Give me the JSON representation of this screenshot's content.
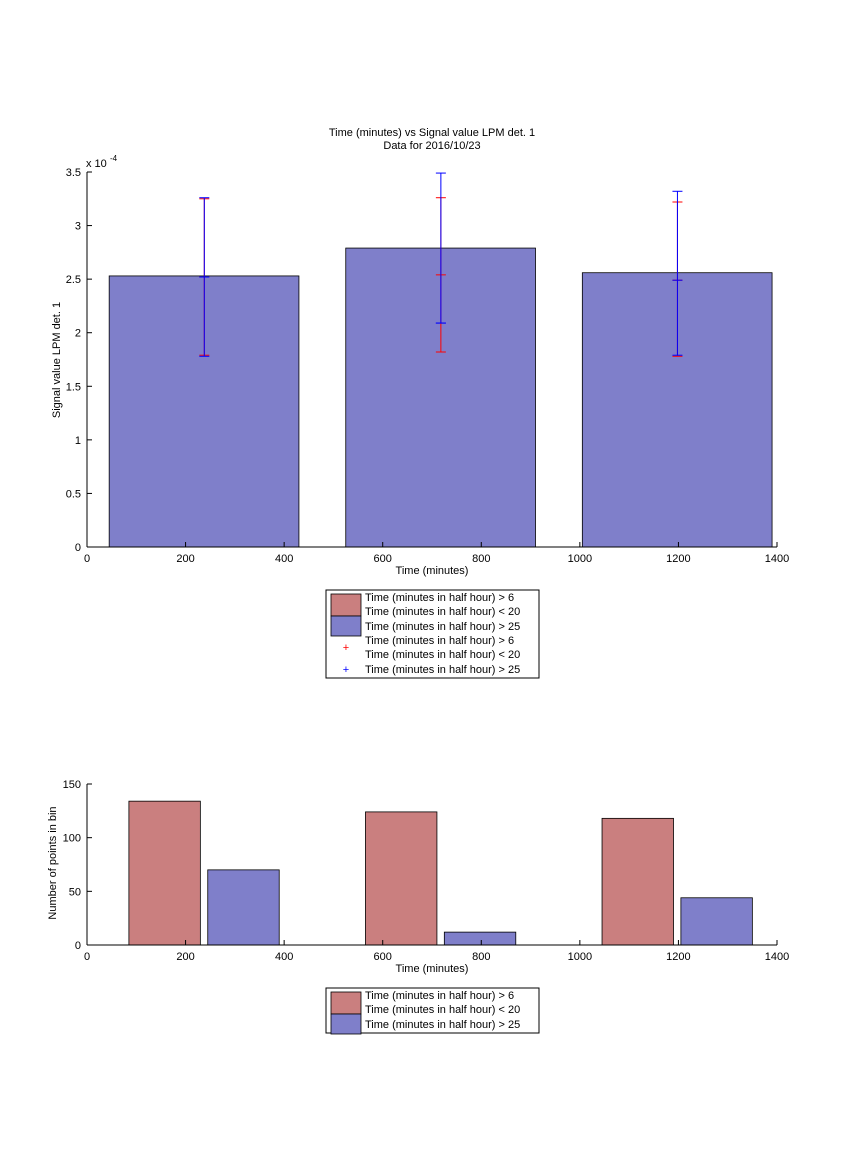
{
  "colors": {
    "red_fill": "#ca7f7f",
    "blue_fill": "#7f7fca",
    "red_err": "#ff0000",
    "blue_err": "#0000ff"
  },
  "legend": {
    "entry_red": [
      "Time (minutes in half hour) > 6",
      "Time (minutes in half hour) < 20"
    ],
    "entry_blue": "Time (minutes in half hour) > 25"
  },
  "chart_data": [
    {
      "type": "bar",
      "title": "Time (minutes) vs Signal value LPM det. 1",
      "subtitle": "Data for 2016/10/23",
      "xlabel": "Time (minutes)",
      "ylabel": "Signal value LPM det. 1",
      "y_exponent": "x 10",
      "y_exponent_power": "-4",
      "xlim": [
        0,
        1400
      ],
      "ylim": [
        0,
        3.5
      ],
      "xticks": [
        0,
        200,
        400,
        600,
        800,
        1000,
        1200,
        1400
      ],
      "yticks": [
        0,
        0.5,
        1,
        1.5,
        2,
        2.5,
        3,
        3.5
      ],
      "ytick_labels": [
        "0",
        "0.5",
        "1",
        "1.5",
        "2",
        "2.5",
        "3",
        "3.5"
      ],
      "bars": [
        {
          "x0": 45,
          "x1": 430,
          "value": 2.53
        },
        {
          "x0": 525,
          "x1": 910,
          "value": 2.79
        },
        {
          "x0": 1005,
          "x1": 1390,
          "value": 2.56
        }
      ],
      "errorbars": [
        {
          "series": "red",
          "x": 238,
          "mean": 2.52,
          "low": 1.79,
          "high": 3.25
        },
        {
          "series": "blue",
          "x": 238,
          "mean": 2.52,
          "low": 1.78,
          "high": 3.26
        },
        {
          "series": "red",
          "x": 718,
          "mean": 2.54,
          "low": 1.82,
          "high": 3.26
        },
        {
          "series": "blue",
          "x": 718,
          "mean": 2.09,
          "low": 2.09,
          "high": 3.49
        },
        {
          "series": "red",
          "x": 1198,
          "mean": 2.49,
          "low": 1.78,
          "high": 3.22
        },
        {
          "series": "blue",
          "x": 1198,
          "mean": 2.49,
          "low": 1.79,
          "high": 3.32
        }
      ]
    },
    {
      "type": "bar",
      "xlabel": "Time (minutes)",
      "ylabel": "Number of points in bin",
      "xlim": [
        0,
        1400
      ],
      "ylim": [
        0,
        150
      ],
      "xticks": [
        0,
        200,
        400,
        600,
        800,
        1000,
        1200,
        1400
      ],
      "yticks": [
        0,
        50,
        100,
        150
      ],
      "bars": [
        {
          "series": "red",
          "x0": 85,
          "x1": 230,
          "value": 134
        },
        {
          "series": "blue",
          "x0": 245,
          "x1": 390,
          "value": 70
        },
        {
          "series": "red",
          "x0": 565,
          "x1": 710,
          "value": 124
        },
        {
          "series": "blue",
          "x0": 725,
          "x1": 870,
          "value": 12
        },
        {
          "series": "red",
          "x0": 1045,
          "x1": 1190,
          "value": 118
        },
        {
          "series": "blue",
          "x0": 1205,
          "x1": 1350,
          "value": 44
        }
      ]
    }
  ]
}
